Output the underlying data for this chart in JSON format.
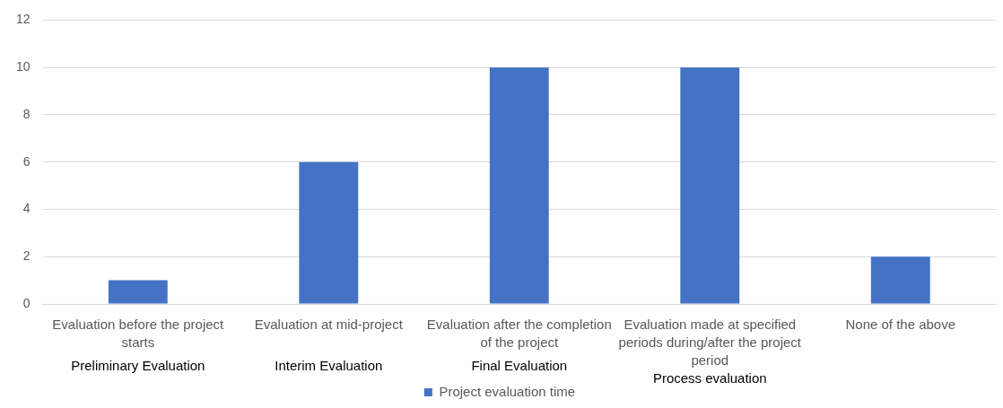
{
  "chart_data": {
    "type": "bar",
    "categories": [
      "Evaluation before the project starts",
      "Evaluation at mid-project",
      "Evaluation after the completion of the project",
      "Evaluation made at specified periods during/after the project period",
      "None of the above"
    ],
    "series": [
      {
        "name": "Project evaluation time",
        "color": "#4472c4",
        "values": [
          1,
          6,
          10,
          10,
          2
        ]
      }
    ],
    "ylim": [
      0,
      12
    ],
    "yticks": [
      0,
      2,
      4,
      6,
      8,
      10,
      12
    ],
    "grid": "y",
    "legend": "bottom",
    "annotations": [
      "Preliminary Evaluation",
      "Interim Evaluation",
      "Final Evaluation",
      "Process evaluation"
    ]
  }
}
